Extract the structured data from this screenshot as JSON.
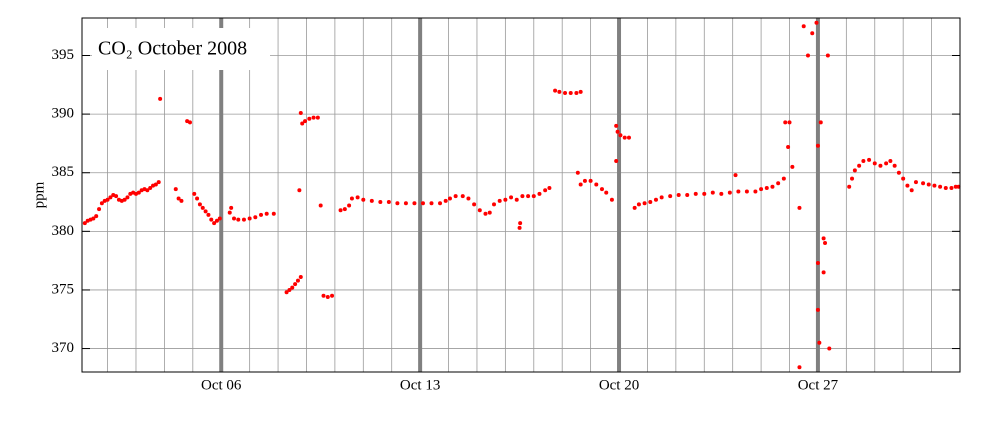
{
  "chart_data": {
    "type": "scatter",
    "title": "CO₂ October 2008",
    "y_label": "ppm",
    "color": "#ff0000",
    "grid": true,
    "xlim": [
      1.1,
      32
    ],
    "ylim": [
      368,
      398.2
    ],
    "xticks": [
      {
        "value": 6,
        "label": "Oct 06"
      },
      {
        "value": 13,
        "label": "Oct 13"
      },
      {
        "value": 20,
        "label": "Oct 20"
      },
      {
        "value": 27,
        "label": "Oct 27"
      }
    ],
    "yticks": [
      370,
      375,
      380,
      385,
      390,
      395
    ],
    "x": [
      1.2,
      1.3,
      1.4,
      1.5,
      1.6,
      1.7,
      1.8,
      1.9,
      2.0,
      2.1,
      2.2,
      2.3,
      2.4,
      2.5,
      2.6,
      2.7,
      2.8,
      2.9,
      3.0,
      3.1,
      3.2,
      3.3,
      3.4,
      3.5,
      3.6,
      3.7,
      3.8,
      3.85,
      4.4,
      4.5,
      4.6,
      4.8,
      4.9,
      5.05,
      5.15,
      5.25,
      5.35,
      5.45,
      5.55,
      5.65,
      5.75,
      5.85,
      5.95,
      6.3,
      6.35,
      6.45,
      6.6,
      6.8,
      7.0,
      7.2,
      7.4,
      7.6,
      7.85,
      8.3,
      8.4,
      8.5,
      8.6,
      8.7,
      8.8,
      8.75,
      8.8,
      8.85,
      8.95,
      9.1,
      9.25,
      9.4,
      9.5,
      9.6,
      9.75,
      9.9,
      10.2,
      10.35,
      10.5,
      10.6,
      10.8,
      11.0,
      11.3,
      11.6,
      11.9,
      12.2,
      12.5,
      12.8,
      13.1,
      13.4,
      13.7,
      13.9,
      14.05,
      14.25,
      14.5,
      14.7,
      14.9,
      15.1,
      15.3,
      15.45,
      15.6,
      15.8,
      16.0,
      16.2,
      16.4,
      16.5,
      16.52,
      16.6,
      16.8,
      17.0,
      17.2,
      17.4,
      17.55,
      17.75,
      17.9,
      18.1,
      18.3,
      18.5,
      18.65,
      18.55,
      18.65,
      18.8,
      19.0,
      19.2,
      19.4,
      19.55,
      19.75,
      19.9,
      19.9,
      19.95,
      20.05,
      20.2,
      20.35,
      20.55,
      20.7,
      20.9,
      21.1,
      21.3,
      21.5,
      21.8,
      22.1,
      22.4,
      22.7,
      23.0,
      23.3,
      23.6,
      23.9,
      24.1,
      24.2,
      24.5,
      24.8,
      25.0,
      25.2,
      25.4,
      25.6,
      25.8,
      25.85,
      25.95,
      26.0,
      26.1,
      26.35,
      26.35,
      26.5,
      26.65,
      26.8,
      26.95,
      27.0,
      27.0,
      27.0,
      27.05,
      27.1,
      27.2,
      27.25,
      27.2,
      27.35,
      27.4,
      28.1,
      28.2,
      28.3,
      28.45,
      28.6,
      28.8,
      29.0,
      29.2,
      29.4,
      29.55,
      29.7,
      29.85,
      30.0,
      30.15,
      30.3,
      30.45,
      30.7,
      30.9,
      31.1,
      31.3,
      31.5,
      31.7,
      31.85,
      31.95
    ],
    "values": [
      380.7,
      380.9,
      381.0,
      381.1,
      381.3,
      381.9,
      382.4,
      382.6,
      382.7,
      382.9,
      383.1,
      383.0,
      382.7,
      382.6,
      382.7,
      382.9,
      383.2,
      383.3,
      383.2,
      383.3,
      383.5,
      383.6,
      383.5,
      383.7,
      383.9,
      384.0,
      384.2,
      391.3,
      383.6,
      382.8,
      382.6,
      389.4,
      389.3,
      383.2,
      382.8,
      382.3,
      382.0,
      381.7,
      381.4,
      381.0,
      380.7,
      380.9,
      381.1,
      381.6,
      382.0,
      381.1,
      381.0,
      381.0,
      381.1,
      381.2,
      381.4,
      381.5,
      381.5,
      374.8,
      375.0,
      375.2,
      375.5,
      375.8,
      376.1,
      383.5,
      390.1,
      389.2,
      389.4,
      389.6,
      389.7,
      389.7,
      382.2,
      374.5,
      374.4,
      374.5,
      381.8,
      381.9,
      382.2,
      382.8,
      382.9,
      382.7,
      382.6,
      382.5,
      382.5,
      382.4,
      382.4,
      382.4,
      382.4,
      382.4,
      382.4,
      382.6,
      382.8,
      383.0,
      383.0,
      382.8,
      382.3,
      381.8,
      381.5,
      381.6,
      382.3,
      382.6,
      382.7,
      382.9,
      382.7,
      380.3,
      380.7,
      383.0,
      383.0,
      383.0,
      383.2,
      383.5,
      383.7,
      392.0,
      391.9,
      391.8,
      391.8,
      391.8,
      391.9,
      385.0,
      384.0,
      384.3,
      384.3,
      384.0,
      383.6,
      383.3,
      382.7,
      389.0,
      386.0,
      388.5,
      388.2,
      388.0,
      388.0,
      382.0,
      382.3,
      382.4,
      382.5,
      382.7,
      382.9,
      383.0,
      383.1,
      383.1,
      383.2,
      383.2,
      383.3,
      383.2,
      383.3,
      384.8,
      383.4,
      383.4,
      383.4,
      383.6,
      383.7,
      383.8,
      384.1,
      384.5,
      389.3,
      387.2,
      389.3,
      385.5,
      382.0,
      368.4,
      397.5,
      395.0,
      396.9,
      397.8,
      387.3,
      377.3,
      373.3,
      370.5,
      389.3,
      379.4,
      379.0,
      376.5,
      395.0,
      370.0,
      383.8,
      384.5,
      385.2,
      385.6,
      386.0,
      386.1,
      385.8,
      385.6,
      385.8,
      386.0,
      385.6,
      385.0,
      384.5,
      383.9,
      383.5,
      384.2,
      384.1,
      384.0,
      383.9,
      383.8,
      383.7,
      383.7,
      383.8,
      383.8
    ]
  }
}
